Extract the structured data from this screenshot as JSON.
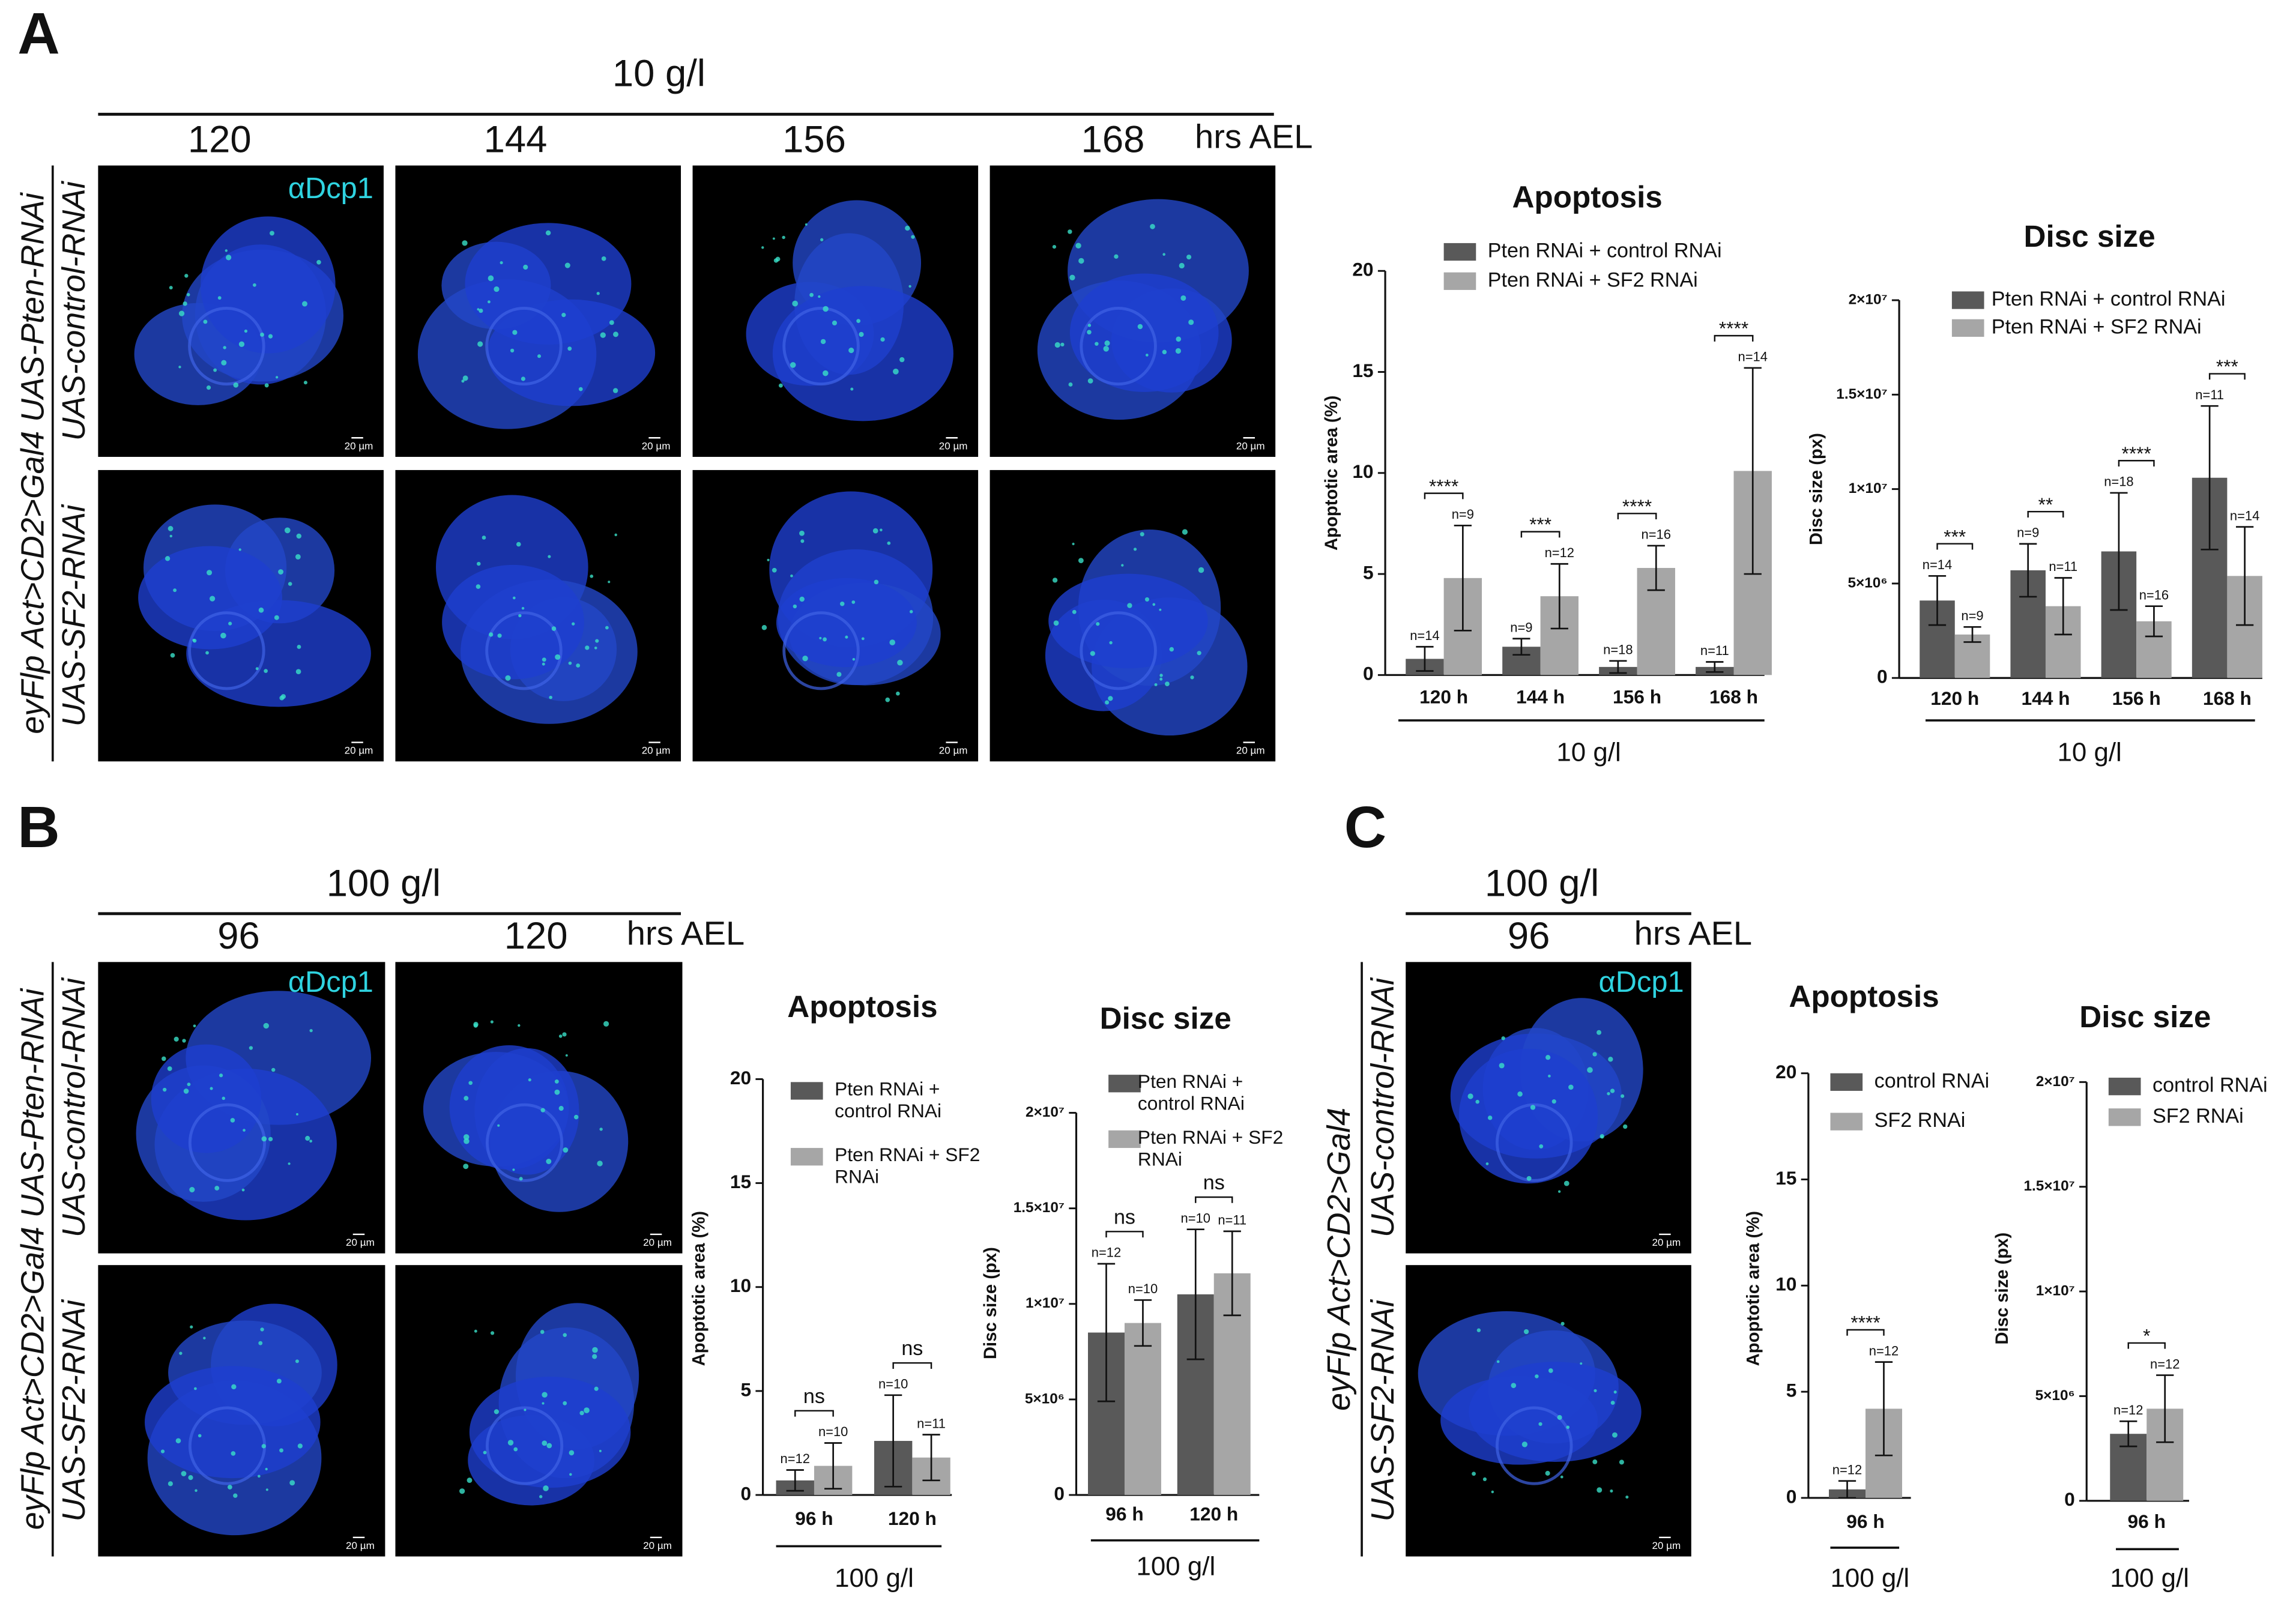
{
  "panels": [
    {
      "letter": "A",
      "condition": "10 g/l",
      "times": [
        "120",
        "144",
        "156",
        "168"
      ],
      "time_unit": "hrs AEL",
      "genotype": "eyFlp Act>CD2>Gal4 UAS-Pten-RNAi",
      "rows": [
        "UAS-control-RNAi",
        "UAS-SF2-RNAi"
      ],
      "stain": "αDcp1"
    },
    {
      "letter": "B",
      "condition": "100 g/l",
      "times": [
        "96",
        "120"
      ],
      "time_unit": "hrs AEL",
      "genotype": "eyFlp Act>CD2>Gal4 UAS-Pten-RNAi",
      "rows": [
        "UAS-control-RNAi",
        "UAS-SF2-RNAi"
      ],
      "stain": "αDcp1"
    },
    {
      "letter": "C",
      "condition": "100 g/l",
      "times": [
        "96"
      ],
      "time_unit": "hrs AEL",
      "genotype": "eyFlp Act>CD2>Gal4",
      "rows": [
        "UAS-control-RNAi",
        "UAS-SF2-RNAi"
      ],
      "stain": "αDcp1"
    }
  ],
  "scale_bar": "20 µm",
  "chart_data": [
    {
      "type": "bar",
      "title": "Apoptosis",
      "y_label": "Apoptotic area (%)",
      "x_label": "10 g/l",
      "categories": [
        "120 h",
        "144 h",
        "156 h",
        "168 h"
      ],
      "series": [
        {
          "name": "Pten RNAi + control RNAi",
          "color": "#595959",
          "values": [
            0.8,
            1.4,
            0.4,
            0.4
          ],
          "errors": [
            0.6,
            0.4,
            0.3,
            0.25
          ],
          "n_labels": [
            "n=14",
            "n=9",
            "n=18",
            "n=11"
          ]
        },
        {
          "name": "Pten RNAi + SF2 RNAi",
          "color": "#a6a6a6",
          "values": [
            4.8,
            3.9,
            5.3,
            10.1
          ],
          "errors": [
            2.6,
            1.6,
            1.1,
            5.1
          ],
          "n_labels": [
            "n=9",
            "n=12",
            "n=16",
            "n=14"
          ]
        }
      ],
      "significance": [
        "****",
        "***",
        "****",
        "****"
      ],
      "ylim": [
        0,
        20
      ],
      "yticks": [
        0,
        5,
        10,
        15,
        20
      ]
    },
    {
      "type": "bar",
      "title": "Disc size",
      "y_label": "Disc size (px)",
      "x_label": "10 g/l",
      "categories": [
        "120 h",
        "144 h",
        "156 h",
        "168 h"
      ],
      "series": [
        {
          "name": "Pten RNAi + control RNAi",
          "color": "#595959",
          "values": [
            4100000,
            5700000,
            6700000,
            10600000
          ],
          "errors": [
            1300000,
            1400000,
            3100000,
            3800000
          ],
          "n_labels": [
            "n=14",
            "n=9",
            "n=18",
            "n=11"
          ]
        },
        {
          "name": "Pten RNAi + SF2 RNAi",
          "color": "#a6a6a6",
          "values": [
            2300000,
            3800000,
            3000000,
            5400000
          ],
          "errors": [
            400000,
            1500000,
            800000,
            2600000
          ],
          "n_labels": [
            "n=9",
            "n=11",
            "n=16",
            "n=14"
          ]
        }
      ],
      "significance": [
        "***",
        "**",
        "****",
        "***"
      ],
      "ylim": [
        0,
        20000000
      ],
      "yticks": [
        0,
        {
          "value": 5000000,
          "label": "5×10⁶"
        },
        {
          "value": 10000000,
          "label": "1×10⁷"
        },
        {
          "value": 15000000,
          "label": "1.5×10⁷"
        },
        {
          "value": 20000000,
          "label": "2×10⁷"
        }
      ]
    },
    {
      "type": "bar",
      "title": "Apoptosis",
      "y_label": "Apoptotic area (%)",
      "x_label": "100 g/l",
      "categories": [
        "96 h",
        "120 h"
      ],
      "series": [
        {
          "name": "Pten RNAi + control RNAi",
          "color": "#595959",
          "values": [
            0.7,
            2.6
          ],
          "errors": [
            0.5,
            2.2
          ],
          "n_labels": [
            "n=12",
            "n=10"
          ]
        },
        {
          "name": "Pten RNAi + SF2 RNAi",
          "color": "#a6a6a6",
          "values": [
            1.4,
            1.8
          ],
          "errors": [
            1.1,
            1.1
          ],
          "n_labels": [
            "n=10",
            "n=11"
          ]
        }
      ],
      "significance": [
        "ns",
        "ns"
      ],
      "ylim": [
        0,
        20
      ],
      "yticks": [
        0,
        5,
        10,
        15,
        20
      ]
    },
    {
      "type": "bar",
      "title": "Disc size",
      "y_label": "Disc size (px)",
      "x_label": "100 g/l",
      "categories": [
        "96 h",
        "120 h"
      ],
      "series": [
        {
          "name": "Pten RNAi + control RNAi",
          "color": "#595959",
          "values": [
            8500000,
            10500000
          ],
          "errors": [
            3600000,
            3400000
          ],
          "n_labels": [
            "n=12",
            "n=10"
          ]
        },
        {
          "name": "Pten RNAi + SF2 RNAi",
          "color": "#a6a6a6",
          "values": [
            9000000,
            11600000
          ],
          "errors": [
            1200000,
            2200000
          ],
          "n_labels": [
            "n=10",
            "n=11"
          ]
        }
      ],
      "significance": [
        "ns",
        "ns"
      ],
      "ylim": [
        0,
        20000000
      ],
      "yticks": [
        0,
        {
          "value": 5000000,
          "label": "5×10⁶"
        },
        {
          "value": 10000000,
          "label": "1×10⁷"
        },
        {
          "value": 15000000,
          "label": "1.5×10⁷"
        },
        {
          "value": 20000000,
          "label": "2×10⁷"
        }
      ]
    },
    {
      "type": "bar",
      "title": "Apoptosis",
      "y_label": "Apoptotic area (%)",
      "x_label": "100 g/l",
      "categories": [
        "96 h"
      ],
      "series": [
        {
          "name": "control RNAi",
          "color": "#595959",
          "values": [
            0.4
          ],
          "errors": [
            0.4
          ],
          "n_labels": [
            "n=12"
          ]
        },
        {
          "name": "SF2 RNAi",
          "color": "#a6a6a6",
          "values": [
            4.2
          ],
          "errors": [
            2.2
          ],
          "n_labels": [
            "n=12"
          ]
        }
      ],
      "significance": [
        "****"
      ],
      "ylim": [
        0,
        20
      ],
      "yticks": [
        0,
        5,
        10,
        15,
        20
      ]
    },
    {
      "type": "bar",
      "title": "Disc size",
      "y_label": "Disc size (px)",
      "x_label": "100 g/l",
      "categories": [
        "96 h"
      ],
      "series": [
        {
          "name": "control RNAi",
          "color": "#595959",
          "values": [
            3200000
          ],
          "errors": [
            600000
          ],
          "n_labels": [
            "n=12"
          ]
        },
        {
          "name": "SF2 RNAi",
          "color": "#a6a6a6",
          "values": [
            4400000
          ],
          "errors": [
            1600000
          ],
          "n_labels": [
            "n=12"
          ]
        }
      ],
      "significance": [
        "*"
      ],
      "ylim": [
        0,
        20000000
      ],
      "yticks": [
        0,
        {
          "value": 5000000,
          "label": "5×10⁶"
        },
        {
          "value": 10000000,
          "label": "1×10⁷"
        },
        {
          "value": 15000000,
          "label": "1.5×10⁷"
        },
        {
          "value": 20000000,
          "label": "2×10⁷"
        }
      ]
    }
  ]
}
